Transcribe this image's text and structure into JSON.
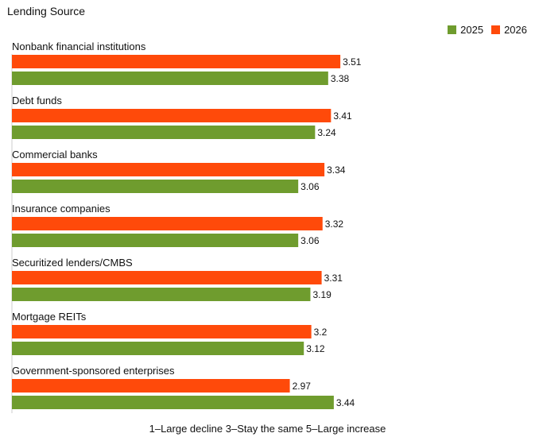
{
  "title": "Lending Source",
  "footer": "1–Large decline 3–Stay the same 5–Large increase",
  "colors": {
    "2025": "#6f9c2e",
    "2026": "#ff4a0a"
  },
  "legend": [
    {
      "name": "2025",
      "color": "#6f9c2e"
    },
    {
      "name": "2026",
      "color": "#ff4a0a"
    }
  ],
  "chart_data": {
    "type": "bar",
    "orientation": "horizontal",
    "title": "Lending Source",
    "xlabel": "1–Large decline 3–Stay the same 5–Large increase",
    "ylabel": "",
    "xlim": [
      0,
      4.1
    ],
    "grid": false,
    "legend_position": "top-right",
    "categories": [
      "Nonbank financial institutions",
      "Debt funds",
      "Commercial banks",
      "Insurance companies",
      "Securitized lenders/CMBS",
      "Mortgage REITs",
      "Government-sponsored enterprises"
    ],
    "series": [
      {
        "name": "2026",
        "values": [
          3.51,
          3.41,
          3.34,
          3.32,
          3.31,
          3.2,
          2.97
        ]
      },
      {
        "name": "2025",
        "values": [
          3.38,
          3.24,
          3.06,
          3.06,
          3.19,
          3.12,
          3.44
        ]
      }
    ]
  }
}
